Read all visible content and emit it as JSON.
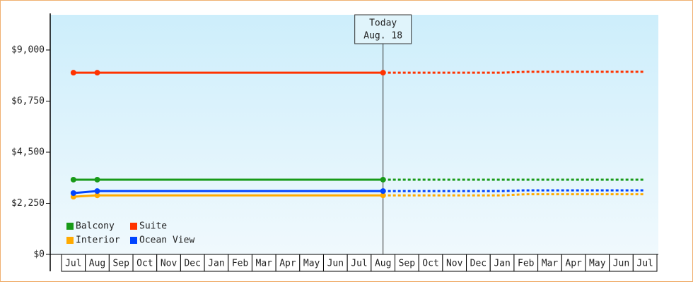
{
  "chart_data": {
    "type": "line",
    "categories": [
      "Jul",
      "Aug",
      "Sep",
      "Oct",
      "Nov",
      "Dec",
      "Jan",
      "Feb",
      "Mar",
      "Apr",
      "May",
      "Jun",
      "Jul",
      "Aug",
      "Sep",
      "Oct",
      "Nov",
      "Dec",
      "Jan",
      "Feb",
      "Mar",
      "Apr",
      "May",
      "Jun",
      "Jul"
    ],
    "series": [
      {
        "name": "Balcony",
        "color": "#189a18",
        "values": [
          3290,
          3290,
          3290,
          3290,
          3290,
          3290,
          3290,
          3290,
          3290,
          3290,
          3290,
          3290,
          3290,
          3290,
          3290,
          3290,
          3290,
          3290,
          3290,
          3290,
          3290,
          3290,
          3290,
          3290,
          3290
        ]
      },
      {
        "name": "Suite",
        "color": "#ff3300",
        "values": [
          8000,
          8000,
          8000,
          8000,
          8000,
          8000,
          8000,
          8000,
          8000,
          8000,
          8000,
          8000,
          8000,
          8000,
          8000,
          8000,
          8000,
          8000,
          8000,
          8040,
          8040,
          8040,
          8040,
          8040,
          8040
        ]
      },
      {
        "name": "Interior",
        "color": "#ffaa00",
        "values": [
          2540,
          2600,
          2600,
          2600,
          2600,
          2600,
          2600,
          2600,
          2600,
          2600,
          2600,
          2600,
          2600,
          2600,
          2600,
          2600,
          2600,
          2600,
          2600,
          2650,
          2650,
          2650,
          2650,
          2650,
          2650
        ]
      },
      {
        "name": "Ocean View",
        "color": "#0044ff",
        "values": [
          2700,
          2790,
          2790,
          2790,
          2790,
          2790,
          2790,
          2790,
          2790,
          2790,
          2790,
          2790,
          2790,
          2790,
          2790,
          2790,
          2790,
          2790,
          2790,
          2820,
          2820,
          2820,
          2820,
          2820,
          2820
        ]
      }
    ],
    "ylim": [
      0,
      10550
    ],
    "yticks": [
      {
        "value": 0,
        "label": "$0"
      },
      {
        "value": 2250,
        "label": "$2,250"
      },
      {
        "value": 4500,
        "label": "$4,500"
      },
      {
        "value": 6750,
        "label": "$6,750"
      },
      {
        "value": 9000,
        "label": "$9,000"
      }
    ],
    "today": {
      "label": [
        "Today",
        "Aug. 18"
      ],
      "index": 13
    },
    "markers": [
      0,
      1,
      13
    ]
  }
}
